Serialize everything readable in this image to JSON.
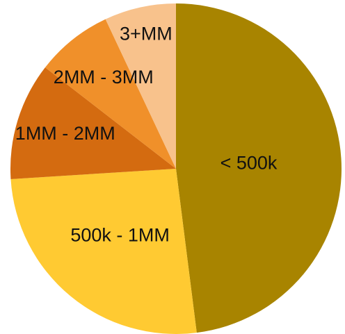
{
  "chart_data": {
    "type": "pie",
    "title": "",
    "start_angle_deg": 0,
    "direction": "clockwise",
    "legend": "none",
    "slices": [
      {
        "label": "< 500k",
        "value": 48.0,
        "color": "#A88400"
      },
      {
        "label": "500k - 1MM",
        "value": 26.0,
        "color": "#FFCA32"
      },
      {
        "label": "1MM - 2MM",
        "value": 11.5,
        "color": "#D46B10"
      },
      {
        "label": "2MM - 3MM",
        "value": 7.5,
        "color": "#F0902A"
      },
      {
        "label": "3+MM",
        "value": 7.0,
        "color": "#F8C28C"
      }
    ]
  }
}
